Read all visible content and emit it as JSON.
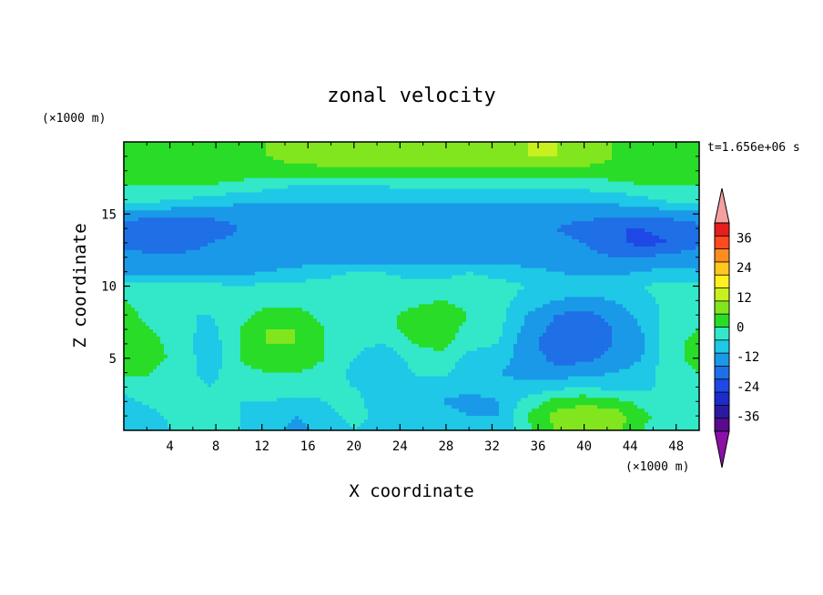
{
  "chart_data": {
    "type": "heatmap",
    "title": "zonal velocity",
    "xlabel": "X coordinate",
    "ylabel": "Z coordinate",
    "x_unit": "(×1000 m)",
    "y_unit": "(×1000 m)",
    "time_label": "t=1.656e+06 s",
    "xlim": [
      0,
      50
    ],
    "ylim": [
      0,
      20
    ],
    "x_ticks": [
      4,
      8,
      12,
      16,
      20,
      24,
      28,
      32,
      36,
      40,
      44,
      48
    ],
    "y_ticks": [
      5,
      10,
      15
    ],
    "colorbar": {
      "levels": [
        -42,
        -36,
        -30,
        -24,
        -18,
        -12,
        -6,
        0,
        6,
        12,
        18,
        24,
        30,
        36,
        42
      ],
      "colors": [
        "#5a0a8c",
        "#2a1aa0",
        "#1c2ccc",
        "#1f48e6",
        "#1f6fe6",
        "#1a99e8",
        "#1ec8e6",
        "#32e8c8",
        "#28dc28",
        "#82e61e",
        "#c8f01e",
        "#fff01e",
        "#ffc81e",
        "#ff8c1e",
        "#ff4a1e",
        "#e61e1e"
      ],
      "under_color": "#8c10a8",
      "over_color": "#f4a0a0",
      "tick_labels": [
        "36",
        "24",
        "12",
        "0",
        "-12",
        "-24",
        "-36"
      ],
      "tick_values": [
        36,
        24,
        12,
        0,
        -12,
        -24,
        -36
      ]
    },
    "field_description": "Estimated zonal velocity (m/s) on an X–Z grid; rows bottom (z=0) to top (z=20), columns x=0..50 every 2.5 km",
    "grid": {
      "x": [
        0,
        2.5,
        5,
        7.5,
        10,
        12.5,
        15,
        17.5,
        20,
        22.5,
        25,
        27.5,
        30,
        32.5,
        35,
        37.5,
        40,
        42.5,
        45,
        47.5,
        50
      ],
      "z": [
        0,
        1,
        2,
        3,
        4,
        5,
        6,
        7,
        8,
        9,
        10,
        11,
        12,
        13,
        14,
        15,
        16,
        17,
        18,
        19,
        20
      ],
      "values": [
        [
          -6,
          -4,
          2,
          4,
          0,
          -4,
          -8,
          -4,
          0,
          -2,
          -4,
          -2,
          -4,
          -6,
          4,
          12,
          16,
          14,
          6,
          2,
          4
        ],
        [
          -4,
          -2,
          4,
          6,
          0,
          -2,
          -6,
          -2,
          2,
          -2,
          -6,
          -4,
          -6,
          -6,
          6,
          14,
          18,
          16,
          8,
          2,
          4
        ],
        [
          -2,
          2,
          4,
          4,
          0,
          0,
          -2,
          0,
          2,
          -4,
          -6,
          -6,
          -8,
          -6,
          2,
          8,
          10,
          8,
          4,
          2,
          2
        ],
        [
          2,
          4,
          2,
          0,
          2,
          4,
          4,
          2,
          0,
          -2,
          -2,
          -4,
          -4,
          -4,
          -4,
          -2,
          0,
          -2,
          -2,
          2,
          4
        ],
        [
          8,
          6,
          2,
          -2,
          4,
          6,
          6,
          4,
          -2,
          -6,
          0,
          2,
          -4,
          -6,
          -8,
          -10,
          -8,
          -6,
          -4,
          4,
          6
        ],
        [
          10,
          8,
          4,
          -4,
          6,
          10,
          10,
          6,
          0,
          -6,
          2,
          4,
          -2,
          -4,
          -8,
          -14,
          -14,
          -10,
          -6,
          4,
          8
        ],
        [
          10,
          8,
          2,
          -4,
          6,
          12,
          12,
          6,
          2,
          0,
          6,
          8,
          2,
          0,
          -10,
          -16,
          -16,
          -12,
          -8,
          4,
          8
        ],
        [
          8,
          6,
          2,
          -2,
          6,
          12,
          12,
          6,
          4,
          4,
          8,
          10,
          4,
          2,
          -8,
          -14,
          -16,
          -12,
          -6,
          4,
          6
        ],
        [
          8,
          4,
          0,
          0,
          4,
          8,
          8,
          4,
          2,
          4,
          8,
          10,
          6,
          2,
          -6,
          -12,
          -14,
          -10,
          -4,
          2,
          6
        ],
        [
          6,
          4,
          2,
          2,
          2,
          4,
          4,
          2,
          2,
          2,
          4,
          6,
          4,
          2,
          -2,
          -6,
          -8,
          -6,
          -2,
          2,
          4
        ],
        [
          4,
          2,
          2,
          2,
          0,
          2,
          2,
          2,
          4,
          2,
          2,
          2,
          2,
          2,
          0,
          -2,
          -2,
          -2,
          0,
          2,
          2
        ],
        [
          -8,
          -8,
          -8,
          -8,
          -8,
          -6,
          -4,
          -2,
          0,
          0,
          -2,
          -2,
          0,
          -2,
          -4,
          -6,
          -8,
          -8,
          -6,
          -4,
          -6
        ],
        [
          -10,
          -10,
          -10,
          -10,
          -10,
          -10,
          -10,
          -10,
          -10,
          -10,
          -10,
          -10,
          -10,
          -10,
          -10,
          -10,
          -10,
          -12,
          -12,
          -10,
          -8
        ],
        [
          -14,
          -16,
          -16,
          -12,
          -10,
          -10,
          -10,
          -10,
          -10,
          -10,
          -10,
          -10,
          -10,
          -10,
          -10,
          -10,
          -12,
          -16,
          -20,
          -18,
          -14
        ],
        [
          -16,
          -18,
          -18,
          -16,
          -12,
          -10,
          -10,
          -10,
          -10,
          -10,
          -10,
          -10,
          -10,
          -10,
          -10,
          -12,
          -14,
          -18,
          -18,
          -16,
          -14
        ],
        [
          -8,
          -10,
          -10,
          -10,
          -10,
          -10,
          -10,
          -10,
          -10,
          -10,
          -10,
          -10,
          -10,
          -10,
          -10,
          -10,
          -10,
          -10,
          -10,
          -10,
          -8
        ],
        [
          2,
          2,
          0,
          -2,
          -4,
          -4,
          -4,
          -4,
          -4,
          -4,
          -4,
          -4,
          -4,
          -4,
          -4,
          -4,
          -4,
          -4,
          -2,
          2,
          2
        ],
        [
          6,
          6,
          6,
          6,
          4,
          2,
          0,
          0,
          0,
          0,
          2,
          2,
          2,
          2,
          2,
          2,
          2,
          4,
          6,
          6,
          6
        ],
        [
          10,
          10,
          10,
          10,
          10,
          10,
          10,
          10,
          10,
          10,
          10,
          10,
          10,
          10,
          10,
          10,
          10,
          10,
          10,
          10,
          10
        ],
        [
          10,
          10,
          10,
          10,
          10,
          12,
          14,
          16,
          16,
          16,
          16,
          16,
          16,
          16,
          18,
          18,
          16,
          12,
          10,
          10,
          10
        ],
        [
          10,
          10,
          10,
          10,
          10,
          12,
          14,
          16,
          16,
          16,
          16,
          16,
          16,
          16,
          18,
          18,
          16,
          12,
          10,
          10,
          10
        ]
      ]
    }
  }
}
